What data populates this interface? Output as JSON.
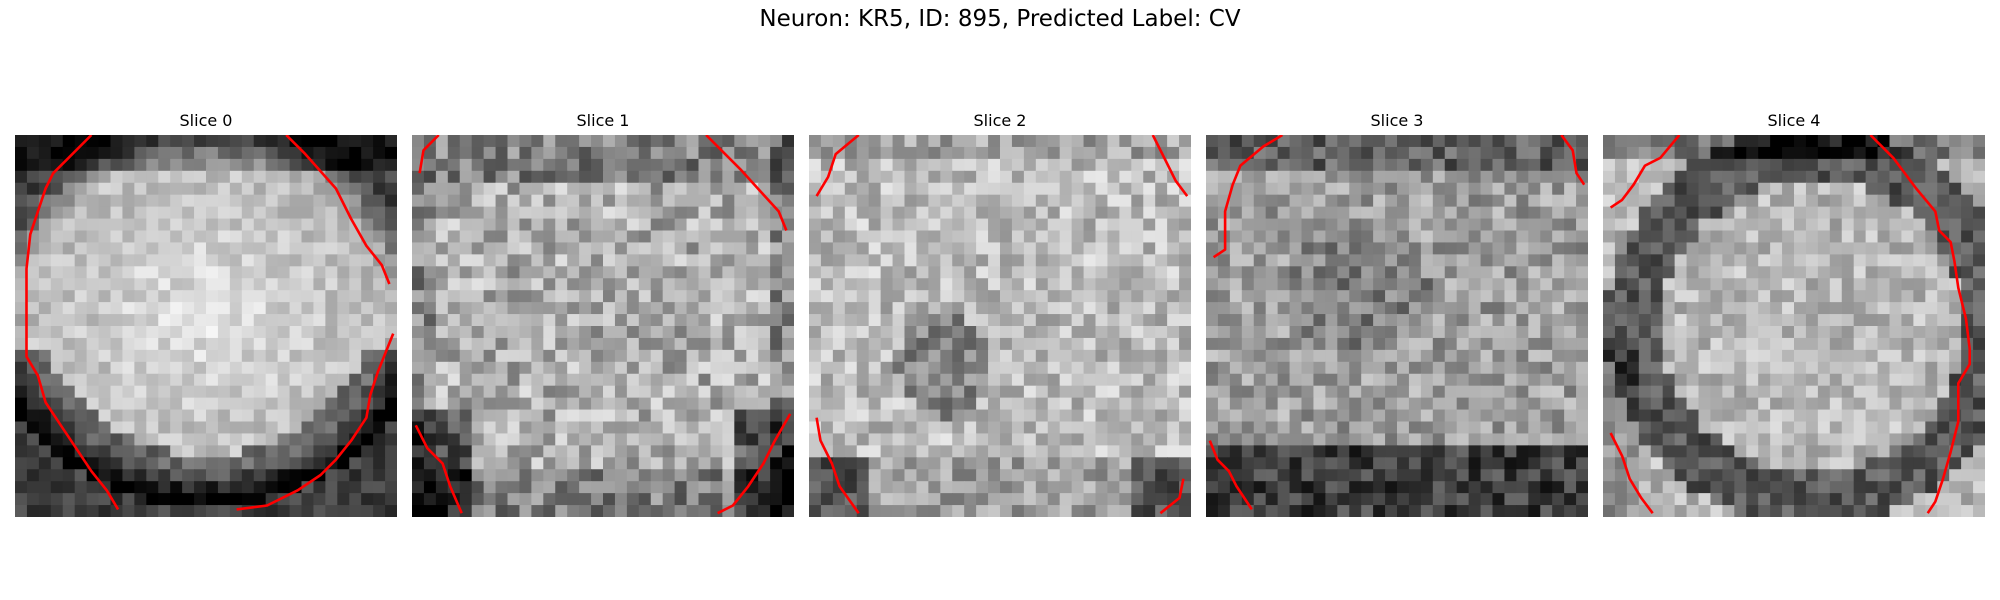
{
  "figure": {
    "title": "Neuron: KR5, ID: 895, Predicted Label: CV"
  },
  "panels": [
    {
      "title": "Slice 0"
    },
    {
      "title": "Slice 1"
    },
    {
      "title": "Slice 2"
    },
    {
      "title": "Slice 3"
    },
    {
      "title": "Slice 4"
    }
  ],
  "colors": {
    "contour": "#ff0000",
    "background": "#ffffff"
  },
  "colormap": "gray"
}
